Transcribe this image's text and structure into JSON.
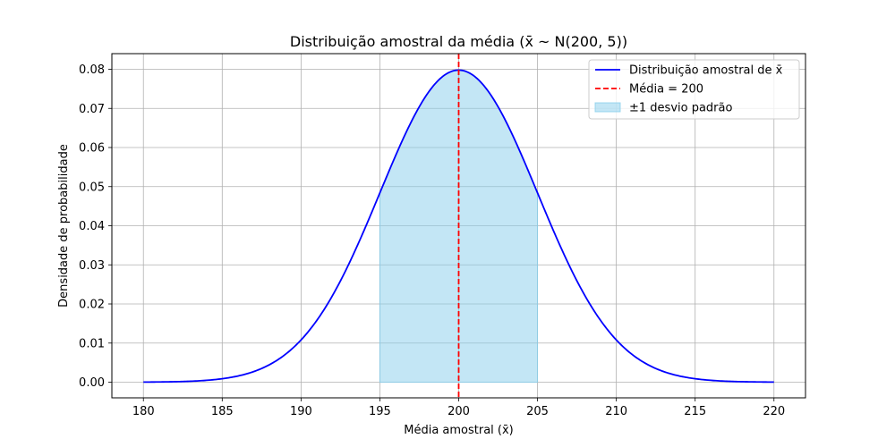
{
  "chart_data": {
    "type": "line",
    "title": "Distribuição amostral da média (x̄ ~ N(200, 5))",
    "xlabel": "Média amostral (x̄)",
    "ylabel": "Densidade de probabilidade",
    "xlim": [
      178,
      222
    ],
    "ylim": [
      -0.004,
      0.084
    ],
    "xticks": [
      180,
      185,
      190,
      195,
      200,
      205,
      210,
      215,
      220
    ],
    "yticks": [
      0.0,
      0.01,
      0.02,
      0.03,
      0.04,
      0.05,
      0.06,
      0.07,
      0.08
    ],
    "ytick_labels": [
      "0.00",
      "0.01",
      "0.02",
      "0.03",
      "0.04",
      "0.05",
      "0.06",
      "0.07",
      "0.08"
    ],
    "grid": true,
    "legend_position": "top-right",
    "distribution": {
      "mean": 200,
      "sd": 5,
      "x_range": [
        180,
        220
      ]
    },
    "series": [
      {
        "name": "Distribuição amostral de x̄",
        "kind": "curve",
        "color": "#0000ff",
        "style": "solid"
      },
      {
        "name": "Média = 200",
        "kind": "vline",
        "x": 200,
        "color": "#ff0000",
        "style": "dashed"
      },
      {
        "name": "±1 desvio padrão",
        "kind": "fill",
        "x_range": [
          195,
          205
        ],
        "color": "#87ceeb",
        "opacity": 0.5
      }
    ]
  }
}
